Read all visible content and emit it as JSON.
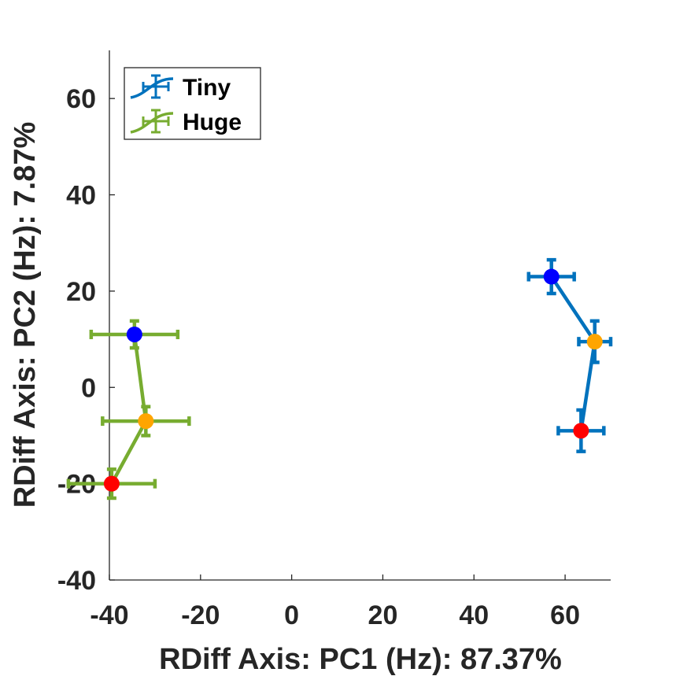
{
  "chart_data": {
    "type": "scatter",
    "title": "",
    "xlabel": "RDiff Axis: PC1 (Hz): 87.37%",
    "ylabel": "RDiff Axis: PC2 (Hz): 7.87%",
    "xlim": [
      -40,
      70
    ],
    "ylim": [
      -40,
      70
    ],
    "xticks": [
      -40,
      -20,
      0,
      20,
      40,
      60
    ],
    "yticks": [
      -40,
      -20,
      0,
      20,
      40,
      60
    ],
    "grid": false,
    "legend_position": "top-left",
    "series": [
      {
        "name": "Tiny",
        "color": "#0072BD",
        "points": [
          {
            "x": 57.0,
            "y": 23.0,
            "xerr": 5.0,
            "yerr": 3.5,
            "marker_color": "#0000FF"
          },
          {
            "x": 66.5,
            "y": 9.5,
            "xerr": 3.5,
            "yerr": 4.3,
            "marker_color": "#FFA500"
          },
          {
            "x": 63.5,
            "y": -9.0,
            "xerr": 5.0,
            "yerr": 4.3,
            "marker_color": "#FF0000"
          }
        ]
      },
      {
        "name": "Huge",
        "color": "#77AC30",
        "points": [
          {
            "x": -34.5,
            "y": 11.0,
            "xerr": 9.5,
            "yerr": 2.8,
            "marker_color": "#0000FF"
          },
          {
            "x": -32.0,
            "y": -7.0,
            "xerr": 9.5,
            "yerr": 3.0,
            "marker_color": "#FFA500"
          },
          {
            "x": -39.5,
            "y": -20.0,
            "xerr": 9.5,
            "yerr": 3.0,
            "marker_color": "#FF0000"
          }
        ]
      }
    ]
  }
}
